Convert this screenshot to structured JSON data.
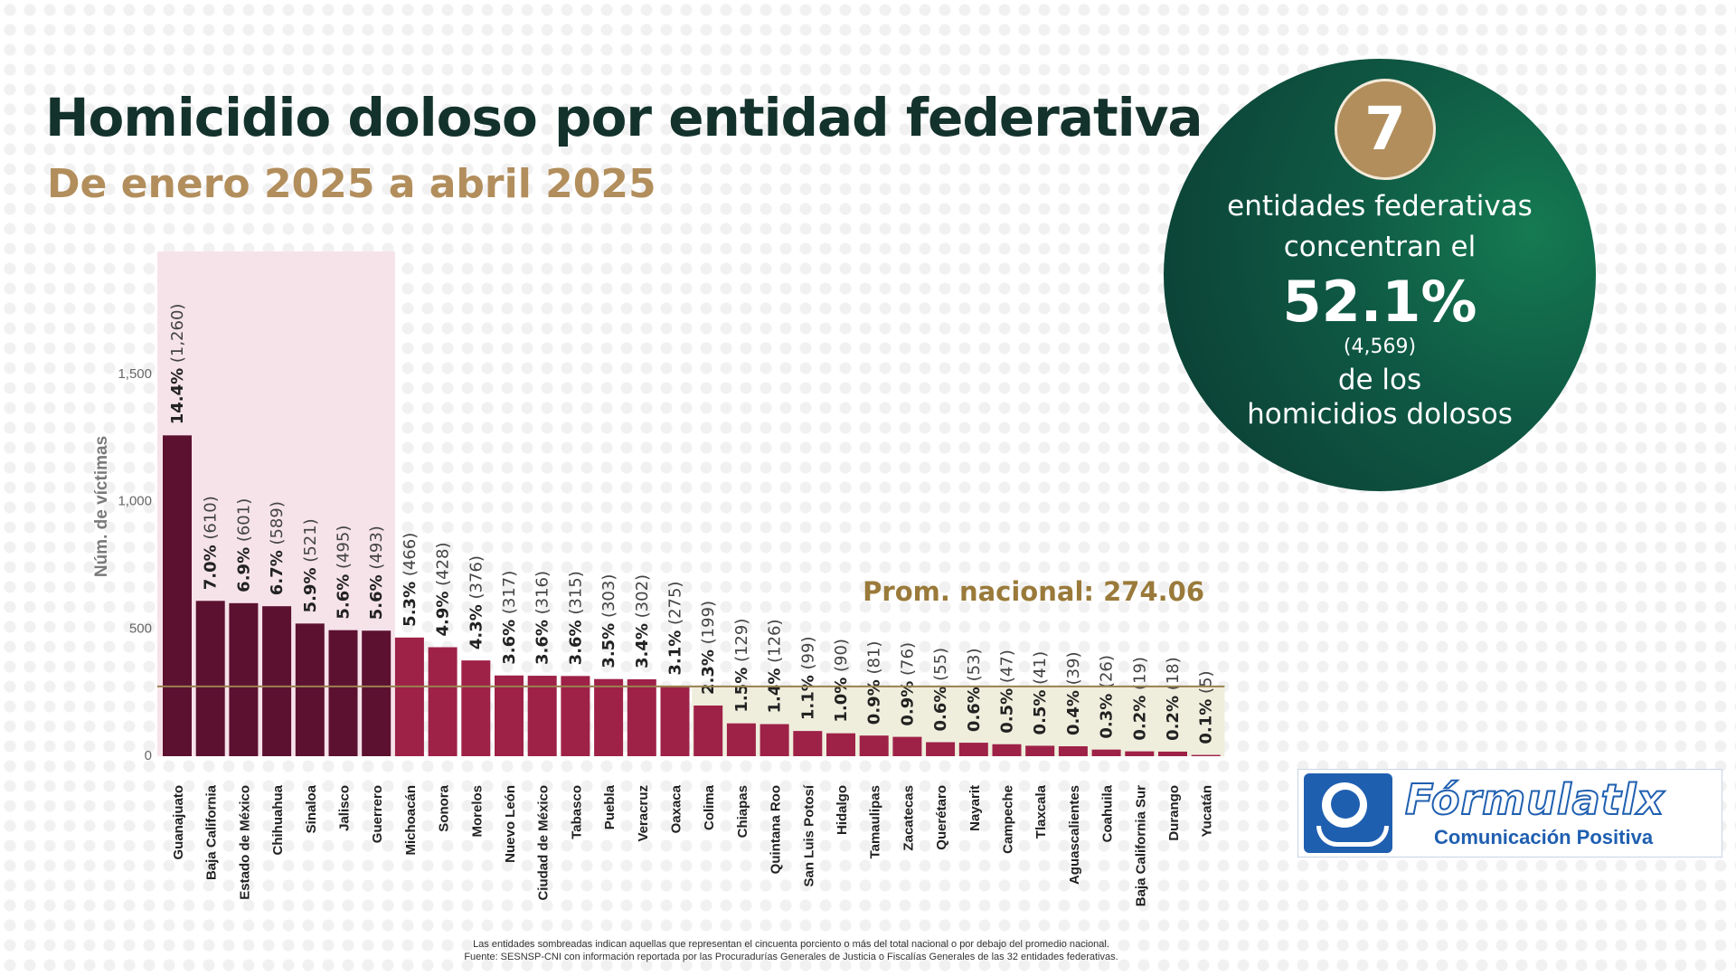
{
  "title": "Homicidio doloso por entidad federativa",
  "subtitle": "De enero 2025 a abril 2025",
  "callout": {
    "number": "7",
    "line1": "entidades federativas",
    "line2": "concentran el",
    "percent": "52.1%",
    "count": "(4,569)",
    "line3": "de los",
    "line4": "homicidios dolosos"
  },
  "logo": {
    "name": "Fórmulatlx",
    "tagline": "Comunicación Positiva"
  },
  "footer": {
    "note": "Las entidades sombreadas indican aquellas que representan el cincuenta porciento o más del total nacional o por debajo del promedio nacional.",
    "source": "Fuente: SESNSP-CNI con información reportada por las Procuradurías Generales de Justicia o Fiscalías Generales de las 32 entidades federativas."
  },
  "colors": {
    "dark_bar": "#5c1130",
    "light_bar": "#9e2148",
    "highlight_top": "#f6e3ea",
    "highlight_below": "#efeedd",
    "avg_line": "#9a8150",
    "avg_text": "#9a7a3a"
  },
  "chart_data": {
    "type": "bar",
    "title": "",
    "xlabel": "",
    "ylabel": "Núm. de víctimas",
    "ylim": [
      0,
      1700
    ],
    "yticks": [
      0,
      500,
      1000,
      1500
    ],
    "ytick_labels": [
      "0",
      "500",
      "1,000",
      "1,500"
    ],
    "grid": false,
    "average": 274.06,
    "average_label": "Prom. nacional: 274.06",
    "top_group_count": 7,
    "categories": [
      "Guanajuato",
      "Baja California",
      "Estado de México",
      "Chihuahua",
      "Sinaloa",
      "Jalisco",
      "Guerrero",
      "Michoacán",
      "Sonora",
      "Morelos",
      "Nuevo León",
      "Ciudad de México",
      "Tabasco",
      "Puebla",
      "Veracruz",
      "Oaxaca",
      "Colima",
      "Chiapas",
      "Quintana Roo",
      "San Luis Potosí",
      "Hidalgo",
      "Tamaulipas",
      "Zacatecas",
      "Querétaro",
      "Nayarit",
      "Campeche",
      "Tlaxcala",
      "Aguascalientes",
      "Coahuila",
      "Baja California Sur",
      "Durango",
      "Yucatán"
    ],
    "values": [
      1260,
      610,
      601,
      589,
      521,
      495,
      493,
      466,
      428,
      376,
      317,
      316,
      315,
      303,
      302,
      275,
      199,
      129,
      126,
      99,
      90,
      81,
      76,
      55,
      53,
      47,
      41,
      39,
      26,
      19,
      18,
      5
    ],
    "percent_labels": [
      "14.4%",
      "7.0%",
      "6.9%",
      "6.7%",
      "5.9%",
      "5.6%",
      "5.6%",
      "5.3%",
      "4.9%",
      "4.3%",
      "3.6%",
      "3.6%",
      "3.6%",
      "3.5%",
      "3.4%",
      "3.1%",
      "2.3%",
      "1.5%",
      "1.4%",
      "1.1%",
      "1.0%",
      "0.9%",
      "0.9%",
      "0.6%",
      "0.6%",
      "0.5%",
      "0.5%",
      "0.4%",
      "0.3%",
      "0.2%",
      "0.2%",
      "0.1%"
    ],
    "count_labels": [
      "(1,260)",
      "(610)",
      "(601)",
      "(589)",
      "(521)",
      "(495)",
      "(493)",
      "(466)",
      "(428)",
      "(376)",
      "(317)",
      "(316)",
      "(315)",
      "(303)",
      "(302)",
      "(275)",
      "(199)",
      "(129)",
      "(126)",
      "(99)",
      "(90)",
      "(81)",
      "(76)",
      "(55)",
      "(53)",
      "(47)",
      "(41)",
      "(39)",
      "(26)",
      "(19)",
      "(18)",
      "(5)"
    ]
  }
}
